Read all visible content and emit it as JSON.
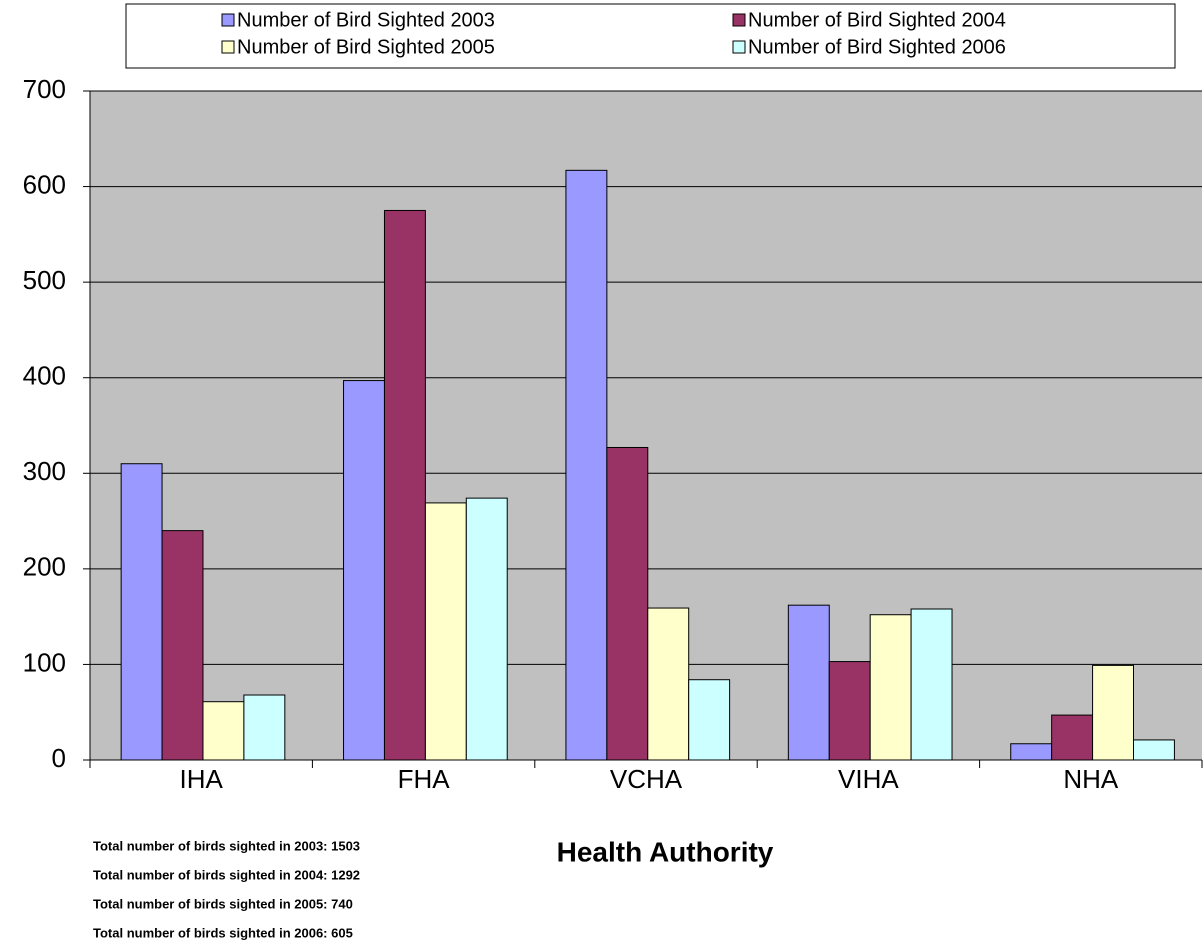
{
  "chart_data": {
    "type": "bar",
    "x_label": "Health Authority",
    "categories": [
      "IHA",
      "FHA",
      "VCHA",
      "VIHA",
      "NHA"
    ],
    "series": [
      {
        "name": "Number of Bird Sighted 2003",
        "color": "#9999ff",
        "values": [
          310,
          397,
          617,
          162,
          17
        ]
      },
      {
        "name": "Number of Bird Sighted 2004",
        "color": "#993366",
        "values": [
          240,
          575,
          327,
          103,
          47
        ]
      },
      {
        "name": "Number of Bird Sighted 2005",
        "color": "#ffffcc",
        "values": [
          61,
          269,
          159,
          152,
          99
        ]
      },
      {
        "name": "Number of Bird Sighted 2006",
        "color": "#ccffff",
        "values": [
          68,
          274,
          84,
          158,
          21
        ]
      }
    ],
    "ylim": [
      0,
      700
    ],
    "yticks": [
      0,
      100,
      200,
      300,
      400,
      500,
      600,
      700
    ],
    "grid": true,
    "legend": "top",
    "annotations": [
      "Total number of birds sighted in 2003: 1503",
      "Total number of birds sighted in 2004: 1292",
      "Total number of birds sighted in 2005: 740",
      "Total number of birds sighted in 2006: 605"
    ]
  }
}
